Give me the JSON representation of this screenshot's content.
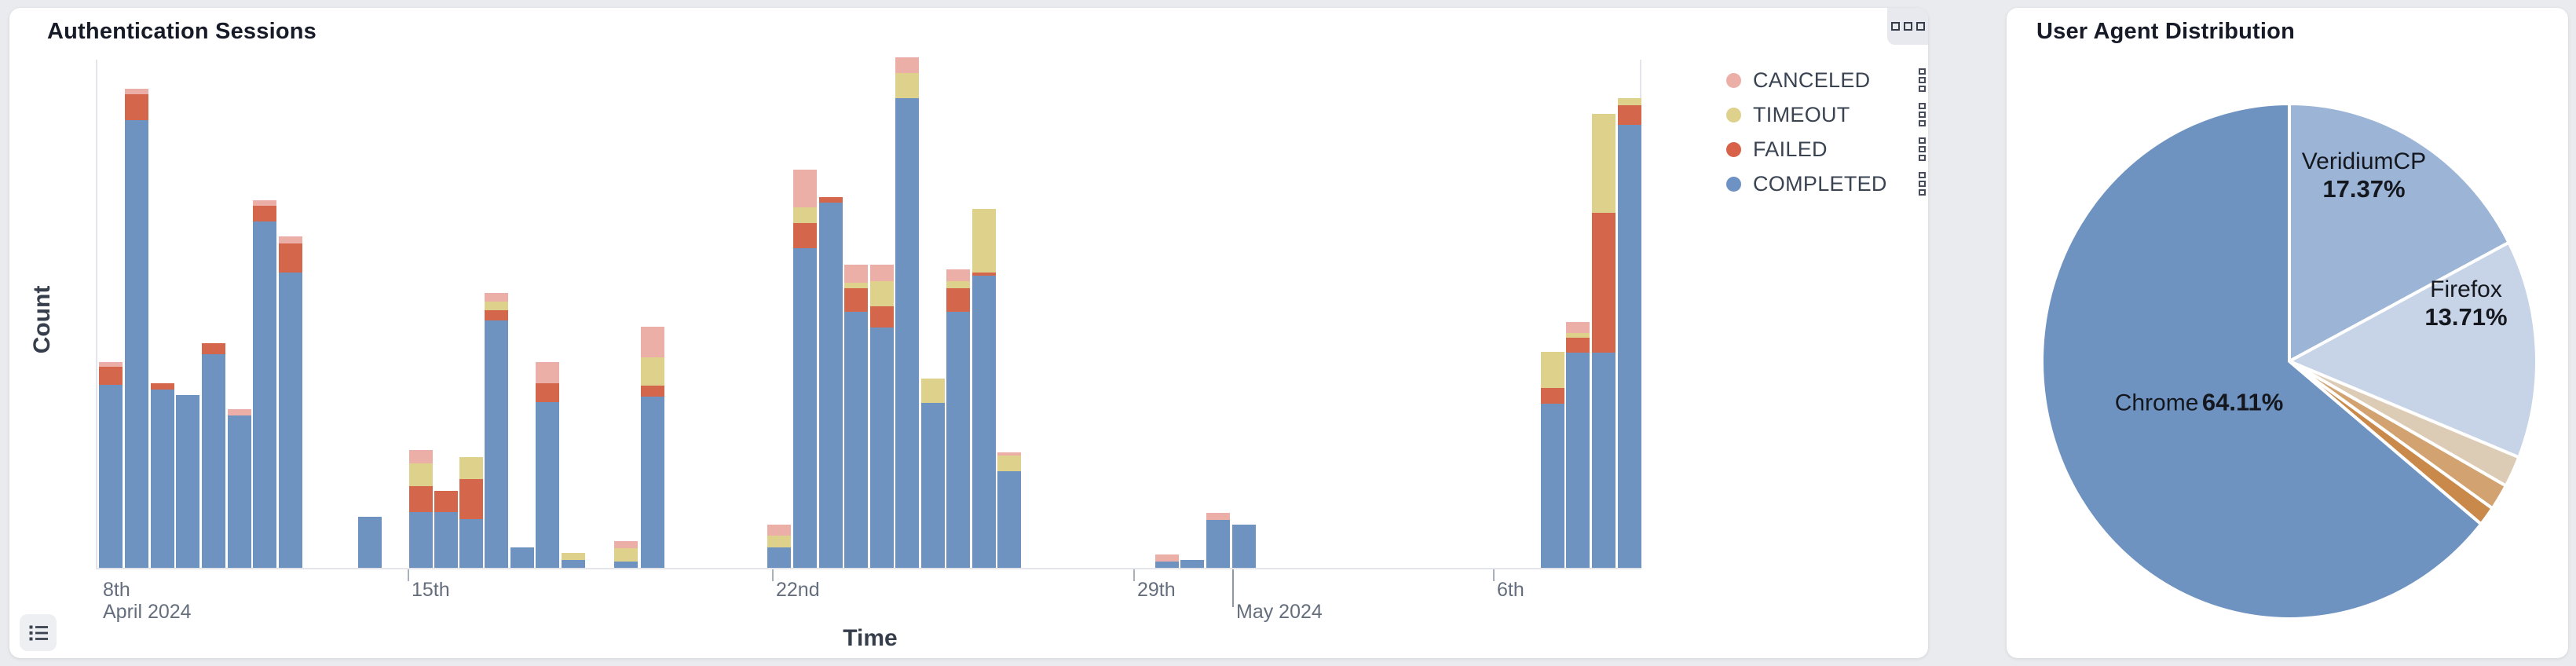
{
  "page": {
    "background": "#e9ebee"
  },
  "sessions_card": {
    "title": "Authentication Sessions",
    "x_axis_title": "Time",
    "y_axis_title": "Count",
    "toolbox_icon": "three-squares-icon",
    "list_button_icon": "list-bullets-icon",
    "legend": [
      {
        "label": "CANCELED",
        "color": "#ecafa7",
        "handle_icon": "drag-handle-icon"
      },
      {
        "label": "TIMEOUT",
        "color": "#ddd18c",
        "handle_icon": "drag-handle-icon"
      },
      {
        "label": "FAILED",
        "color": "#d8614a",
        "handle_icon": "drag-handle-icon"
      },
      {
        "label": "COMPLETED",
        "color": "#6d92c3",
        "handle_icon": "drag-handle-icon"
      }
    ]
  },
  "useragents_card": {
    "title": "User Agent Distribution"
  },
  "chart_data": [
    {
      "type": "bar",
      "stacked": true,
      "title": "Authentication Sessions",
      "xlabel": "Time",
      "ylabel": "Count",
      "y_axis_tick_labels": "none shown",
      "ylim": [
        0,
        100
      ],
      "series_order_bottom_to_top": [
        "COMPLETED",
        "FAILED",
        "TIMEOUT",
        "CANCELED"
      ],
      "colors": {
        "COMPLETED": "#6e93c1",
        "FAILED": "#d4664b",
        "TIMEOUT": "#ddd18c",
        "CANCELED": "#ecafa7"
      },
      "x_ticks": [
        {
          "label": "8th",
          "sublabel": "April 2024",
          "px": 126,
          "tick": "none"
        },
        {
          "label": "15th",
          "sublabel": "",
          "px": 519,
          "tick": "short"
        },
        {
          "label": "22nd",
          "sublabel": "",
          "px": 983,
          "tick": "short"
        },
        {
          "label": "29th",
          "sublabel": "",
          "px": 1443,
          "tick": "short"
        },
        {
          "label": "",
          "sublabel": "May 2024",
          "px": 1569,
          "tick": "long"
        },
        {
          "label": "6th",
          "sublabel": "",
          "px": 1901,
          "tick": "short"
        }
      ],
      "bars": [
        {
          "t": "Apr 8 AM",
          "px": 141,
          "completed": 36,
          "failed": 3.5,
          "timeout": 0,
          "canceled": 1.0
        },
        {
          "t": "Apr 8 PM",
          "px": 174,
          "completed": 88,
          "failed": 5.0,
          "timeout": 0,
          "canceled": 1.2
        },
        {
          "t": "Apr 9 AM",
          "px": 207,
          "completed": 35,
          "failed": 1.2,
          "timeout": 0,
          "canceled": 0
        },
        {
          "t": "Apr 9 PM",
          "px": 239,
          "completed": 34,
          "failed": 0,
          "timeout": 0,
          "canceled": 0
        },
        {
          "t": "Apr 10 AM",
          "px": 272,
          "completed": 42,
          "failed": 2.2,
          "timeout": 0,
          "canceled": 0
        },
        {
          "t": "Apr 10 PM",
          "px": 305,
          "completed": 30,
          "failed": 0,
          "timeout": 0,
          "canceled": 1.2
        },
        {
          "t": "Apr 11 AM",
          "px": 337,
          "completed": 68,
          "failed": 3.1,
          "timeout": 0,
          "canceled": 1.1
        },
        {
          "t": "Apr 11 PM",
          "px": 370,
          "completed": 58,
          "failed": 5.8,
          "timeout": 0,
          "canceled": 1.3
        },
        {
          "t": "Apr 14",
          "px": 471,
          "completed": 10,
          "failed": 0,
          "timeout": 0,
          "canceled": 0
        },
        {
          "t": "Apr 15 AM",
          "px": 536,
          "completed": 11,
          "failed": 5.1,
          "timeout": 4.5,
          "canceled": 2.6
        },
        {
          "t": "Apr 15 PM",
          "px": 568,
          "completed": 11,
          "failed": 4.1,
          "timeout": 0,
          "canceled": 0
        },
        {
          "t": "Apr 16 AM",
          "px": 600,
          "completed": 9.6,
          "failed": 7.8,
          "timeout": 4.3,
          "canceled": 0
        },
        {
          "t": "Apr 16 PM",
          "px": 632,
          "completed": 48.6,
          "failed": 2.0,
          "timeout": 1.7,
          "canceled": 1.7
        },
        {
          "t": "Apr 17 AM",
          "px": 665,
          "completed": 4,
          "failed": 0,
          "timeout": 0,
          "canceled": 0
        },
        {
          "t": "Apr 17 PM",
          "px": 697,
          "completed": 32.5,
          "failed": 3.8,
          "timeout": 0,
          "canceled": 4.2
        },
        {
          "t": "Apr 18 AM",
          "px": 730,
          "completed": 1.5,
          "failed": 0,
          "timeout": 1.4,
          "canceled": 0
        },
        {
          "t": "Apr 19 AM",
          "px": 797,
          "completed": 1.3,
          "failed": 0,
          "timeout": 2.5,
          "canceled": 1.5
        },
        {
          "t": "Apr 19 PM",
          "px": 831,
          "completed": 33.6,
          "failed": 2.2,
          "timeout": 5.6,
          "canceled": 6.0
        },
        {
          "t": "Apr 22 AM",
          "px": 992,
          "completed": 4,
          "failed": 0,
          "timeout": 2.3,
          "canceled": 2.2
        },
        {
          "t": "Apr 22 PM",
          "px": 1025,
          "completed": 62.8,
          "failed": 4.9,
          "timeout": 3.1,
          "canceled": 7.4
        },
        {
          "t": "Apr 23 AM",
          "px": 1058,
          "completed": 71.8,
          "failed": 1.1,
          "timeout": 0,
          "canceled": 0
        },
        {
          "t": "Apr 23 PM",
          "px": 1090,
          "completed": 50.3,
          "failed": 4.6,
          "timeout": 1.1,
          "canceled": 3.5
        },
        {
          "t": "Apr 24 AM",
          "px": 1123,
          "completed": 47.2,
          "failed": 4.2,
          "timeout": 4.9,
          "canceled": 3.2
        },
        {
          "t": "Apr 24 PM",
          "px": 1155,
          "completed": 92.3,
          "failed": 0,
          "timeout": 4.9,
          "canceled": 3.1
        },
        {
          "t": "Apr 25 AM",
          "px": 1188,
          "completed": 32.4,
          "failed": 0,
          "timeout": 4.8,
          "canceled": 0
        },
        {
          "t": "Apr 25 PM",
          "px": 1220,
          "completed": 50.3,
          "failed": 4.6,
          "timeout": 1.4,
          "canceled": 2.3
        },
        {
          "t": "Apr 26 AM",
          "px": 1253,
          "completed": 57.4,
          "failed": 0.6,
          "timeout": 12.6,
          "canceled": 0
        },
        {
          "t": "Apr 26 PM",
          "px": 1285,
          "completed": 19,
          "failed": 0,
          "timeout": 3.0,
          "canceled": 0.7
        },
        {
          "t": "Apr 29 PM",
          "px": 1486,
          "completed": 1.2,
          "failed": 0,
          "timeout": 0,
          "canceled": 1.5
        },
        {
          "t": "Apr 30 AM",
          "px": 1518,
          "completed": 1.5,
          "failed": 0,
          "timeout": 0,
          "canceled": 0
        },
        {
          "t": "Apr 30 PM",
          "px": 1551,
          "completed": 9.4,
          "failed": 0,
          "timeout": 0,
          "canceled": 1.4
        },
        {
          "t": "May 1 AM",
          "px": 1584,
          "completed": 8.5,
          "failed": 0,
          "timeout": 0,
          "canceled": 0
        },
        {
          "t": "May 7 AM",
          "px": 1977,
          "completed": 32.3,
          "failed": 3.1,
          "timeout": 7.0,
          "canceled": 0
        },
        {
          "t": "May 7 PM",
          "px": 2009,
          "completed": 42.3,
          "failed": 2.9,
          "timeout": 0.9,
          "canceled": 2.2
        },
        {
          "t": "May 8 AM",
          "px": 2042,
          "completed": 42.3,
          "failed": 27.5,
          "timeout": 19.4,
          "canceled": 0
        },
        {
          "t": "May 8 PM",
          "px": 2075,
          "completed": 87.1,
          "failed": 3.8,
          "timeout": 1.4,
          "canceled": 0
        }
      ]
    },
    {
      "type": "pie",
      "title": "User Agent Distribution",
      "start_angle_deg_clockwise_from_top": 0,
      "slices": [
        {
          "label": "VeridiumCP",
          "pct_text": "17.37%",
          "value": 17.37,
          "color": "#9cb5d6",
          "labeled": true,
          "label_x": 455,
          "label_y": 213
        },
        {
          "label": "Firefox",
          "pct_text": "13.71%",
          "value": 13.71,
          "color": "#c7d4e7",
          "labeled": true,
          "label_x": 585,
          "label_y": 376
        },
        {
          "label": "",
          "pct_text": "",
          "value": 1.95,
          "color": "#ddccb5",
          "labeled": false
        },
        {
          "label": "",
          "pct_text": "",
          "value": 1.65,
          "color": "#d2a371",
          "labeled": false
        },
        {
          "label": "",
          "pct_text": "",
          "value": 1.21,
          "color": "#c9894b",
          "labeled": false
        },
        {
          "label": "Chrome",
          "pct_text": "64.11%",
          "value": 64.11,
          "color": "#6e93c1",
          "labeled": true,
          "label_x": 245,
          "label_y": 505,
          "inline": true
        }
      ]
    }
  ]
}
